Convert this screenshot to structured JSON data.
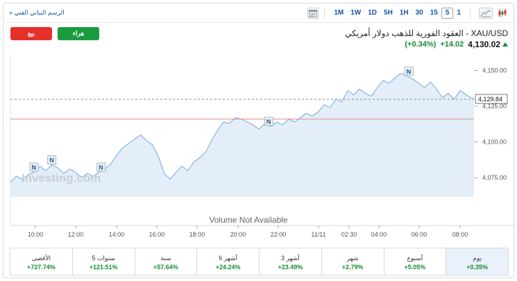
{
  "toolbar": {
    "technical_chart_link": "الرسم البياني الفني",
    "link_chevron": "»",
    "timeframes": [
      "1M",
      "1W",
      "1D",
      "5H",
      "1H",
      "30",
      "15",
      "5",
      "1"
    ],
    "active_timeframe": "5",
    "chart_types": [
      "area-chart-icon",
      "candlestick-icon"
    ],
    "active_chart_type": "area-chart-icon"
  },
  "header": {
    "sell_label": "بيع",
    "buy_label": "هراء",
    "title": "XAU/USD - العقود الفورية للذهب دولار أمريكي",
    "last": "4,130.02",
    "change": "+14.02",
    "change_pct": "(+0.34%)",
    "trend": "up"
  },
  "colors": {
    "sell": "#e5312a",
    "buy": "#1a9c3e",
    "positive": "#168a34",
    "link": "#1256a0",
    "area_line": "#7cafe0",
    "area_fill": "#e4eef8",
    "reference_line": "#e88c84",
    "current_price_line": "#8a8a8a"
  },
  "chart": {
    "watermark": "Investing.com",
    "volume_text": "Volume Not Available",
    "current_price_label": "4,129.84",
    "news_marker": "N"
  },
  "chart_data": {
    "type": "area",
    "x_labels": [
      "10:00",
      "12:00",
      "14:00",
      "16:00",
      "18:00",
      "20:00",
      "22:00",
      "11/11",
      "02:30",
      "04:00",
      "06:00",
      "08:00"
    ],
    "y_ticks": [
      4075,
      4100,
      4125,
      4150
    ],
    "y_tick_labels": [
      "4,075.00",
      "4,100.00",
      "4,125.00",
      "4,150.00"
    ],
    "ylim": [
      4062,
      4158
    ],
    "reference_price": 4116,
    "current_price": 4129.84,
    "x_range": [
      0,
      23.5
    ],
    "series": [
      {
        "values": [
          [
            0,
            4072
          ],
          [
            0.3,
            4076
          ],
          [
            0.6,
            4074
          ],
          [
            0.9,
            4077
          ],
          [
            1.2,
            4079
          ],
          [
            1.5,
            4083
          ],
          [
            1.8,
            4080
          ],
          [
            2.1,
            4084
          ],
          [
            2.4,
            4082
          ],
          [
            2.7,
            4078
          ],
          [
            3.0,
            4081
          ],
          [
            3.3,
            4079
          ],
          [
            3.6,
            4075
          ],
          [
            3.9,
            4078
          ],
          [
            4.2,
            4076
          ],
          [
            4.5,
            4079
          ],
          [
            4.8,
            4081
          ],
          [
            5.1,
            4085
          ],
          [
            5.4,
            4091
          ],
          [
            5.7,
            4096
          ],
          [
            6.0,
            4099
          ],
          [
            6.3,
            4102
          ],
          [
            6.6,
            4105
          ],
          [
            6.9,
            4101
          ],
          [
            7.2,
            4098
          ],
          [
            7.5,
            4090
          ],
          [
            7.8,
            4078
          ],
          [
            8.1,
            4074
          ],
          [
            8.4,
            4079
          ],
          [
            8.7,
            4083
          ],
          [
            9.0,
            4080
          ],
          [
            9.3,
            4086
          ],
          [
            9.6,
            4089
          ],
          [
            9.9,
            4093
          ],
          [
            10.2,
            4101
          ],
          [
            10.5,
            4108
          ],
          [
            10.8,
            4114
          ],
          [
            11.1,
            4113
          ],
          [
            11.4,
            4117
          ],
          [
            11.7,
            4116
          ],
          [
            12.0,
            4114
          ],
          [
            12.3,
            4112
          ],
          [
            12.6,
            4109
          ],
          [
            12.9,
            4113
          ],
          [
            13.2,
            4111
          ],
          [
            13.5,
            4114
          ],
          [
            13.8,
            4112
          ],
          [
            14.1,
            4116
          ],
          [
            14.4,
            4114
          ],
          [
            14.7,
            4117
          ],
          [
            15.0,
            4120
          ],
          [
            15.3,
            4118
          ],
          [
            15.6,
            4121
          ],
          [
            15.9,
            4126
          ],
          [
            16.2,
            4124
          ],
          [
            16.5,
            4130
          ],
          [
            16.8,
            4128
          ],
          [
            17.1,
            4136
          ],
          [
            17.4,
            4133
          ],
          [
            17.7,
            4137
          ],
          [
            18.0,
            4134
          ],
          [
            18.3,
            4132
          ],
          [
            18.6,
            4138
          ],
          [
            18.9,
            4143
          ],
          [
            19.2,
            4141
          ],
          [
            19.5,
            4145
          ],
          [
            19.8,
            4148
          ],
          [
            20.1,
            4146
          ],
          [
            20.4,
            4144
          ],
          [
            20.7,
            4141
          ],
          [
            21.0,
            4138
          ],
          [
            21.3,
            4142
          ],
          [
            21.6,
            4137
          ],
          [
            21.9,
            4131
          ],
          [
            22.2,
            4134
          ],
          [
            22.5,
            4130
          ],
          [
            22.8,
            4136
          ],
          [
            23.1,
            4133
          ],
          [
            23.5,
            4129.84
          ]
        ]
      }
    ],
    "news_markers_at": [
      1.2,
      2.1,
      4.6,
      13.1,
      20.2
    ]
  },
  "periods": [
    {
      "label": "الأقصى",
      "value": "+727.74%"
    },
    {
      "label": "5 سنوات",
      "value": "+121.51%"
    },
    {
      "label": "سنة",
      "value": "+57.64%"
    },
    {
      "label": "6 أشهر",
      "value": "+24.24%"
    },
    {
      "label": "3 أشهر",
      "value": "+23.49%"
    },
    {
      "label": "شهر",
      "value": "+2.79%"
    },
    {
      "label": "أسبوع",
      "value": "+5.05%"
    },
    {
      "label": "يوم",
      "value": "+0.35%"
    }
  ],
  "active_period": "يوم"
}
